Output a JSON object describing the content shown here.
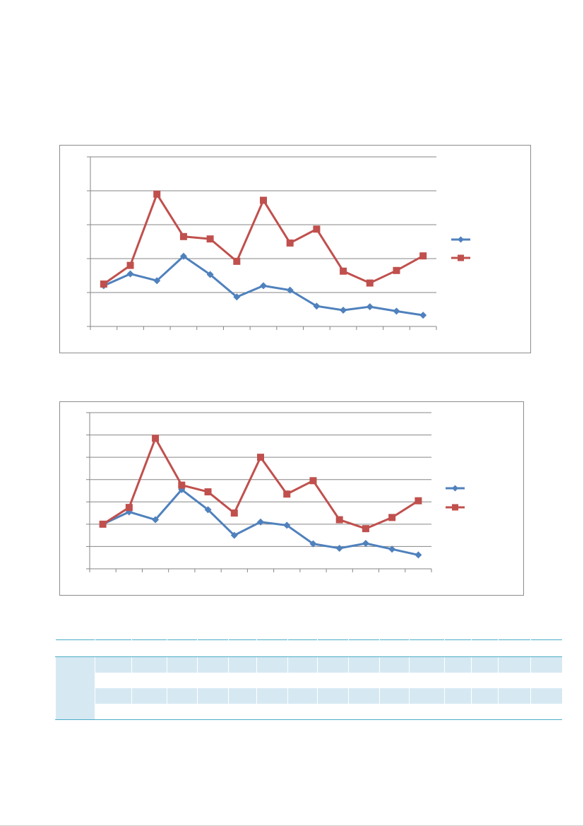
{
  "chart_data": [
    {
      "type": "line",
      "title": "",
      "xlabel": "",
      "ylabel": "",
      "categories": [
        "",
        "",
        "",
        "",
        "",
        "",
        "",
        "",
        "",
        "",
        "",
        "",
        ""
      ],
      "ylim": [
        0,
        5
      ],
      "y_gridlines": [
        0,
        1,
        2,
        3,
        4,
        5
      ],
      "grid": true,
      "legend_position": "right",
      "series": [
        {
          "color": "#4f81bd",
          "marker": "diamond",
          "values": [
            1.2,
            1.55,
            1.35,
            2.07,
            1.53,
            0.87,
            1.2,
            1.07,
            0.6,
            0.48,
            0.58,
            0.45,
            0.33
          ]
        },
        {
          "color": "#c0504d",
          "marker": "square",
          "values": [
            1.25,
            1.8,
            3.9,
            2.65,
            2.58,
            1.92,
            3.72,
            2.46,
            2.87,
            1.63,
            1.28,
            1.65,
            2.08
          ]
        }
      ]
    },
    {
      "type": "line",
      "title": "",
      "xlabel": "",
      "ylabel": "",
      "categories": [
        "",
        "",
        "",
        "",
        "",
        "",
        "",
        "",
        "",
        "",
        "",
        "",
        ""
      ],
      "ylim": [
        0,
        7
      ],
      "y_gridlines": [
        0,
        1,
        2,
        3,
        4,
        5,
        6,
        7
      ],
      "grid": true,
      "legend_position": "right",
      "series": [
        {
          "color": "#4f81bd",
          "marker": "diamond",
          "values": [
            2.0,
            2.55,
            2.2,
            3.55,
            2.65,
            1.5,
            2.1,
            1.95,
            1.12,
            0.92,
            1.14,
            0.88,
            0.62
          ]
        },
        {
          "color": "#c0504d",
          "marker": "square",
          "values": [
            2.0,
            2.75,
            5.85,
            3.75,
            3.45,
            2.5,
            5.0,
            3.35,
            3.95,
            2.2,
            1.8,
            2.3,
            3.05
          ]
        }
      ]
    }
  ],
  "table": {
    "header": [
      "",
      "",
      "",
      "",
      "",
      "",
      "",
      "",
      "",
      "",
      "",
      "",
      "",
      "",
      "",
      ""
    ],
    "rows": [
      [
        "",
        "",
        "",
        "",
        "",
        "",
        "",
        "",
        "",
        "",
        "",
        "",
        "",
        "",
        "",
        ""
      ],
      [
        "",
        "",
        "",
        "",
        "",
        "",
        "",
        "",
        "",
        "",
        "",
        "",
        "",
        "",
        "",
        ""
      ],
      [
        "",
        "",
        "",
        "",
        "",
        "",
        "",
        "",
        "",
        "",
        "",
        "",
        "",
        "",
        "",
        ""
      ],
      [
        "",
        "",
        "",
        "",
        "",
        "",
        "",
        "",
        "",
        "",
        "",
        "",
        "",
        "",
        "",
        ""
      ]
    ]
  }
}
